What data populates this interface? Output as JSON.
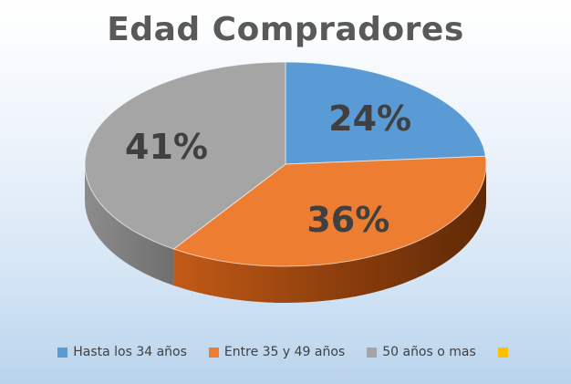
{
  "chart_data": {
    "type": "pie",
    "title": "Edad Compradores",
    "categories": [
      "Hasta los 34 años",
      "Entre 35 y 49 años",
      "50 años o mas",
      ""
    ],
    "values": [
      24,
      36,
      41,
      0
    ],
    "labels": [
      "24%",
      "36%",
      "41%",
      ""
    ],
    "colors": [
      "#5b9bd5",
      "#ed7d31",
      "#a5a5a5",
      "#ffc000"
    ],
    "style": "3d",
    "legend": "bottom"
  }
}
